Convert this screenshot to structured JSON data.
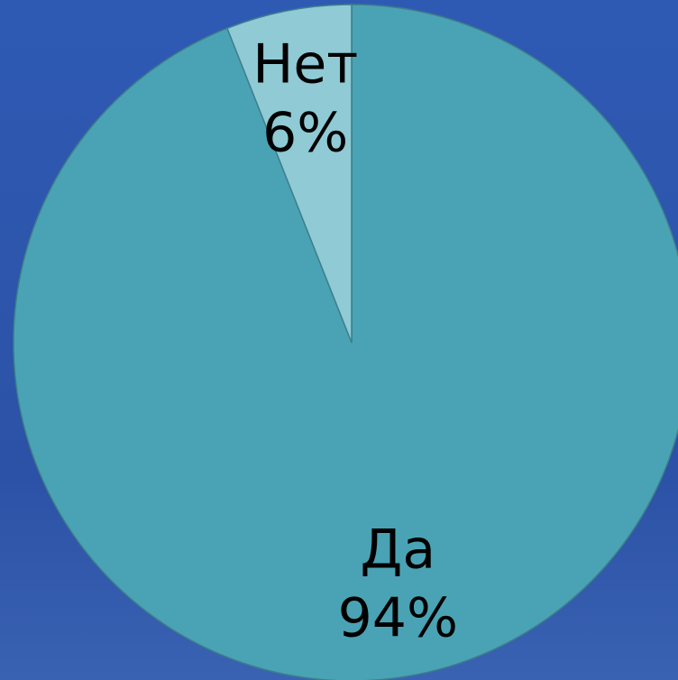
{
  "chart_data": {
    "type": "pie",
    "categories": [
      "Да",
      "Нет"
    ],
    "values": [
      94,
      6
    ],
    "value_labels": [
      "94%",
      "6%"
    ],
    "colors": [
      "#4aa3b4",
      "#8fcad5"
    ]
  }
}
